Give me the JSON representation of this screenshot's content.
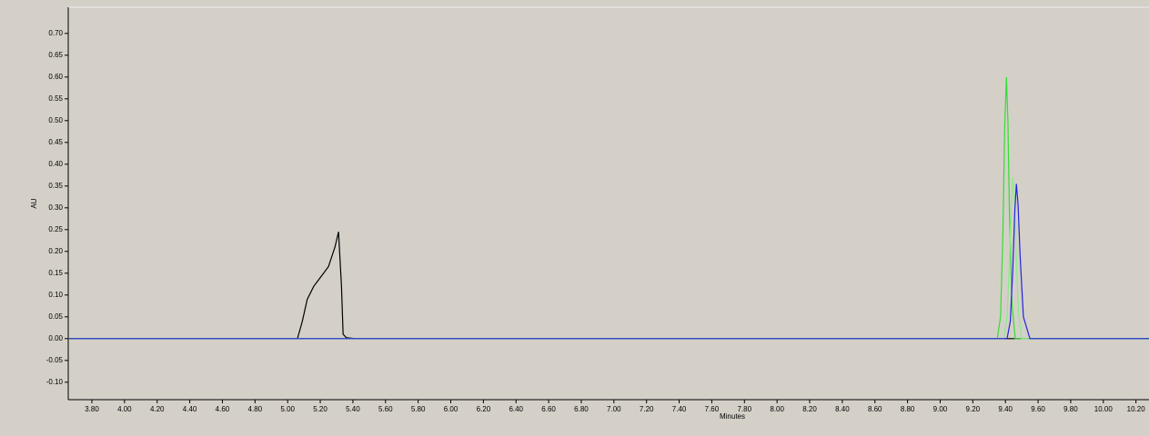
{
  "chart_data": {
    "type": "line",
    "xlabel": "Minutes",
    "ylabel": "AU",
    "xlim": [
      3.655,
      10.28
    ],
    "ylim": [
      -0.14,
      0.76
    ],
    "xticks": [
      {
        "value": 3.8,
        "label": "3.80"
      },
      {
        "value": 4.0,
        "label": "4.00"
      },
      {
        "value": 4.2,
        "label": "4.20"
      },
      {
        "value": 4.4,
        "label": "4.40"
      },
      {
        "value": 4.6,
        "label": "4.60"
      },
      {
        "value": 4.8,
        "label": "4.80"
      },
      {
        "value": 5.0,
        "label": "5.00"
      },
      {
        "value": 5.2,
        "label": "5.20"
      },
      {
        "value": 5.4,
        "label": "5.40"
      },
      {
        "value": 5.6,
        "label": "5.60"
      },
      {
        "value": 5.8,
        "label": "5.80"
      },
      {
        "value": 6.0,
        "label": "6.00"
      },
      {
        "value": 6.2,
        "label": "6.20"
      },
      {
        "value": 6.4,
        "label": "6.40"
      },
      {
        "value": 6.6,
        "label": "6.60"
      },
      {
        "value": 6.8,
        "label": "6.80"
      },
      {
        "value": 7.0,
        "label": "7.00"
      },
      {
        "value": 7.2,
        "label": "7.20"
      },
      {
        "value": 7.4,
        "label": "7.40"
      },
      {
        "value": 7.6,
        "label": "7.60"
      },
      {
        "value": 7.8,
        "label": "7.80"
      },
      {
        "value": 8.0,
        "label": "8.00"
      },
      {
        "value": 8.2,
        "label": "8.20"
      },
      {
        "value": 8.4,
        "label": "8.40"
      },
      {
        "value": 8.6,
        "label": "8.60"
      },
      {
        "value": 8.8,
        "label": "8.80"
      },
      {
        "value": 9.0,
        "label": "9.00"
      },
      {
        "value": 9.2,
        "label": "9.20"
      },
      {
        "value": 9.4,
        "label": "9.40"
      },
      {
        "value": 9.6,
        "label": "9.60"
      },
      {
        "value": 9.8,
        "label": "9.80"
      },
      {
        "value": 10.0,
        "label": "10.00"
      },
      {
        "value": 10.2,
        "label": "10.20"
      }
    ],
    "yticks": [
      {
        "value": -0.1,
        "label": "-0.10"
      },
      {
        "value": -0.05,
        "label": "-0.05"
      },
      {
        "value": 0,
        "label": "0.00"
      },
      {
        "value": 0.05,
        "label": "0.05"
      },
      {
        "value": 0.1,
        "label": "0.10"
      },
      {
        "value": 0.15,
        "label": "0.15"
      },
      {
        "value": 0.2,
        "label": "0.20"
      },
      {
        "value": 0.25,
        "label": "0.25"
      },
      {
        "value": 0.3,
        "label": "0.30"
      },
      {
        "value": 0.35,
        "label": "0.35"
      },
      {
        "value": 0.4,
        "label": "0.40"
      },
      {
        "value": 0.45,
        "label": "0.45"
      },
      {
        "value": 0.5,
        "label": "0.50"
      },
      {
        "value": 0.55,
        "label": "0.55"
      },
      {
        "value": 0.6,
        "label": "0.60"
      },
      {
        "value": 0.65,
        "label": "0.65"
      },
      {
        "value": 0.7,
        "label": "0.70"
      }
    ],
    "series": [
      {
        "color": "#000000",
        "x": [
          3.66,
          5.06,
          5.09,
          5.12,
          5.16,
          5.2,
          5.25,
          5.29,
          5.312,
          5.33,
          5.34,
          5.36,
          5.42,
          10.28
        ],
        "values": [
          0,
          0,
          0.04,
          0.09,
          0.12,
          0.14,
          0.165,
          0.21,
          0.245,
          0.12,
          0.01,
          0.002,
          0,
          0
        ]
      },
      {
        "color": "#33dd33",
        "x": [
          3.66,
          9.35,
          9.37,
          9.385,
          9.395,
          9.406,
          9.415,
          9.425,
          9.44,
          9.46,
          10.28
        ],
        "values": [
          0,
          0,
          0.05,
          0.25,
          0.48,
          0.6,
          0.5,
          0.28,
          0.08,
          0,
          0
        ]
      },
      {
        "color": "#88ee88",
        "x": [
          3.66,
          9.39,
          9.41,
          9.425,
          9.435,
          9.445,
          9.455,
          9.465,
          9.48,
          9.5,
          10.28
        ],
        "values": [
          0,
          0,
          0.05,
          0.18,
          0.3,
          0.37,
          0.32,
          0.2,
          0.06,
          0,
          0
        ]
      },
      {
        "color": "#2222dd",
        "x": [
          3.66,
          9.41,
          9.43,
          9.445,
          9.457,
          9.467,
          9.477,
          9.49,
          9.51,
          9.55,
          10.28
        ],
        "values": [
          0,
          0,
          0.04,
          0.16,
          0.29,
          0.355,
          0.31,
          0.19,
          0.05,
          0,
          0
        ]
      }
    ]
  }
}
